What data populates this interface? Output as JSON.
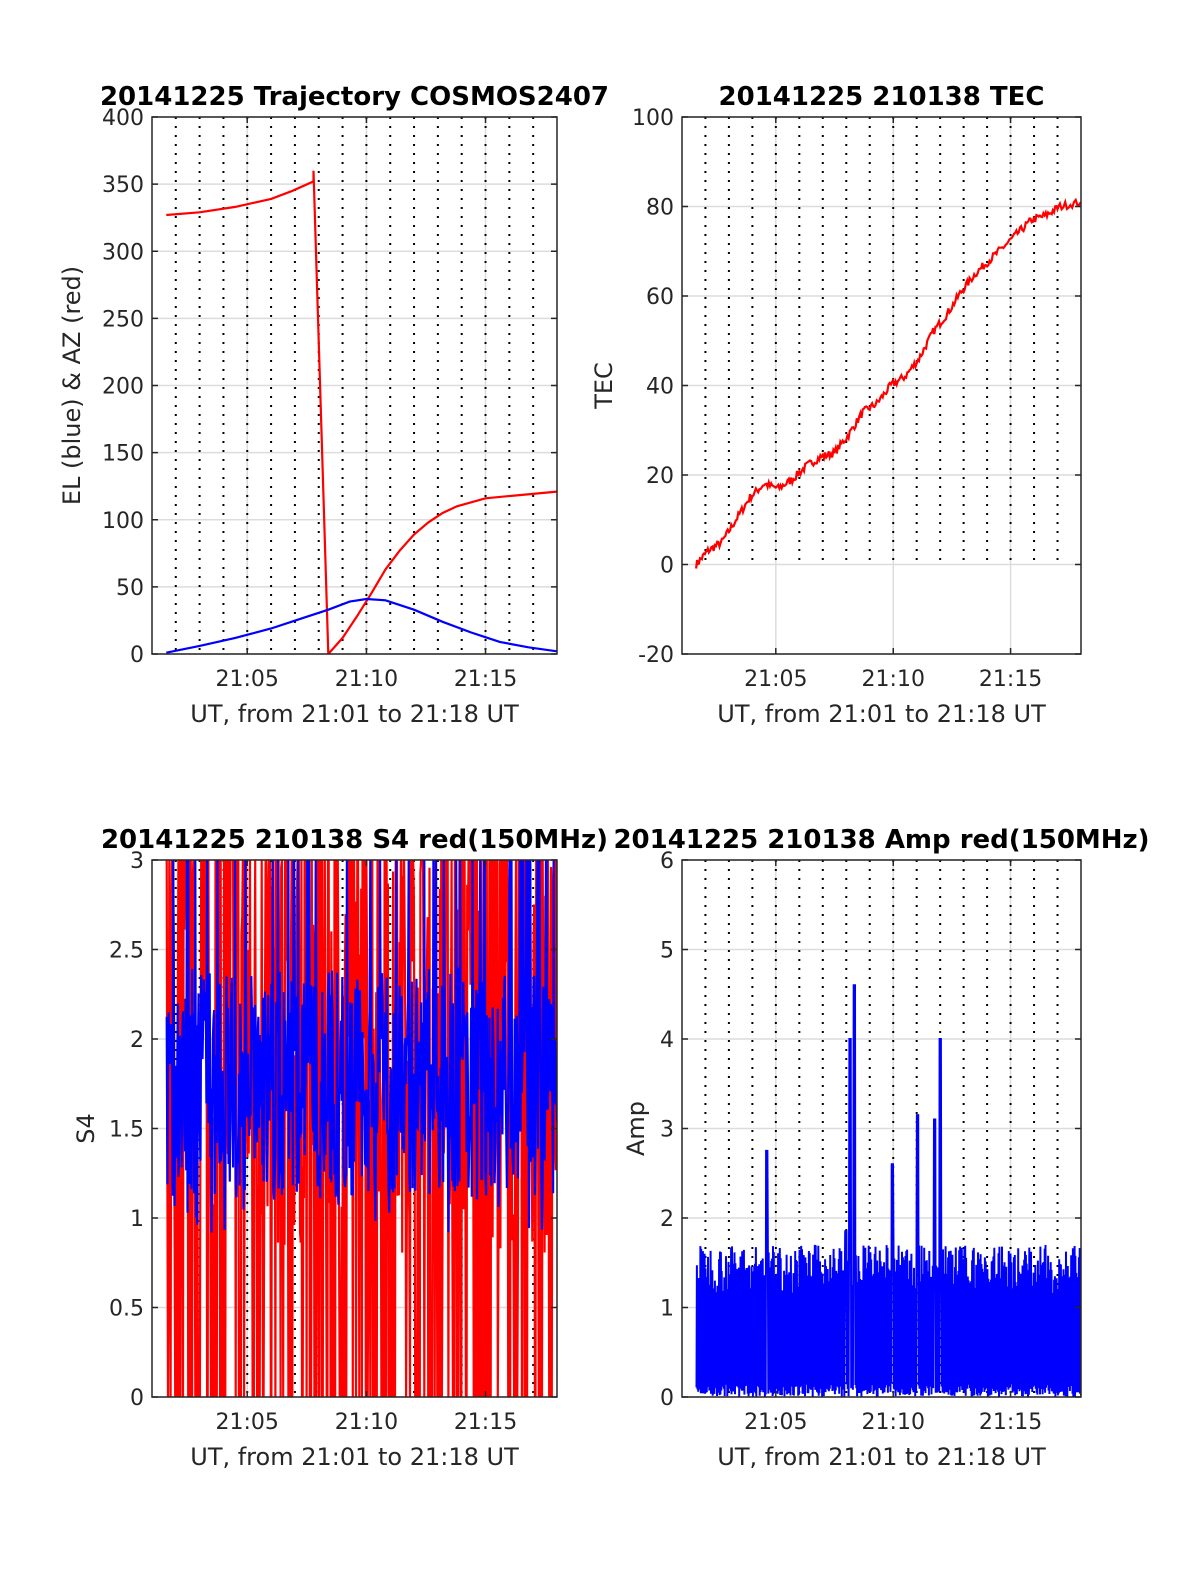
{
  "colors": {
    "red": "#ff0000",
    "blue": "#0000ff",
    "axis": "#262626",
    "grid": "#dcdcdc",
    "dots": "#000000"
  },
  "chart_data": [
    {
      "id": "trajectory",
      "type": "line",
      "title": "20141225 Trajectory COSMOS2407",
      "xlabel": "UT, from 21:01 to 21:18 UT",
      "ylabel": "EL (blue) & AZ (red)",
      "xlim": [
        21.0167,
        21.3
      ],
      "ylim": [
        0,
        400
      ],
      "xticks": [
        21.0833,
        21.1667,
        21.25
      ],
      "xtick_labels": [
        "21:05",
        "21:10",
        "21:15"
      ],
      "yticks": [
        0,
        50,
        100,
        150,
        200,
        250,
        300,
        350,
        400
      ],
      "ytick_labels": [
        "0",
        "50",
        "100",
        "150",
        "200",
        "250",
        "300",
        "350",
        "400"
      ],
      "grid": true,
      "series": [
        {
          "color": "red",
          "x": [
            21.0267,
            21.05,
            21.075,
            21.1,
            21.115,
            21.1297,
            21.1297,
            21.14,
            21.15,
            21.16,
            21.17,
            21.18,
            21.19,
            21.2,
            21.21,
            21.22,
            21.23,
            21.24,
            21.25,
            21.27,
            21.3
          ],
          "y": [
            327,
            329,
            333,
            339,
            345,
            352,
            360,
            0,
            12,
            28,
            45,
            63,
            77,
            89,
            98,
            105,
            110,
            113,
            116,
            118,
            121
          ]
        },
        {
          "color": "blue",
          "x": [
            21.0267,
            21.05,
            21.075,
            21.1,
            21.12,
            21.14,
            21.155,
            21.1667,
            21.18,
            21.2,
            21.22,
            21.24,
            21.26,
            21.28,
            21.3
          ],
          "y": [
            1,
            6,
            12,
            19,
            26,
            33,
            39,
            41,
            40,
            33,
            24,
            16,
            9,
            5,
            2
          ]
        }
      ]
    },
    {
      "id": "tec",
      "type": "line",
      "title": "20141225 210138 TEC",
      "xlabel": "UT, from 21:01 to 21:18 UT",
      "ylabel": "TEC",
      "xlim": [
        21.0167,
        21.3
      ],
      "ylim": [
        -20,
        100
      ],
      "xticks": [
        21.0833,
        21.1667,
        21.25
      ],
      "xtick_labels": [
        "21:05",
        "21:10",
        "21:15"
      ],
      "yticks": [
        -20,
        0,
        20,
        40,
        60,
        80,
        100
      ],
      "ytick_labels": [
        "-20",
        "0",
        "20",
        "40",
        "60",
        "80",
        "100"
      ],
      "grid": true,
      "series": [
        {
          "color": "red",
          "x": [
            21.0267,
            21.035,
            21.045,
            21.055,
            21.065,
            21.075,
            21.085,
            21.095,
            21.105,
            21.115,
            21.125,
            21.135,
            21.145,
            21.155,
            21.165,
            21.175,
            21.185,
            21.195,
            21.205,
            21.215,
            21.225,
            21.235,
            21.245,
            21.255,
            21.265,
            21.275,
            21.285,
            21.3
          ],
          "y": [
            0,
            3,
            5,
            10,
            15,
            18,
            17,
            19,
            22,
            24,
            25,
            29,
            34,
            36,
            40,
            42,
            46,
            52,
            56,
            61,
            65,
            68,
            71,
            74,
            77,
            78,
            80,
            81
          ]
        }
      ]
    },
    {
      "id": "s4",
      "type": "line",
      "title": "20141225 210138 S4 red(150MHz)",
      "xlabel": "UT, from 21:01 to 21:18 UT",
      "ylabel": "S4",
      "xlim": [
        21.0167,
        21.3
      ],
      "ylim": [
        0,
        3
      ],
      "xticks": [
        21.0833,
        21.1667,
        21.25
      ],
      "xtick_labels": [
        "21:05",
        "21:10",
        "21:15"
      ],
      "yticks": [
        0,
        0.5,
        1,
        1.5,
        2,
        2.5,
        3
      ],
      "ytick_labels": [
        "0",
        "0.5",
        "1",
        "1.5",
        "2",
        "2.5",
        "3"
      ],
      "grid": true,
      "series": [
        {
          "color": "red",
          "x_range": [
            21.027,
            21.3
          ],
          "band": [
            0,
            3
          ],
          "note": "dense noise spanning full range"
        },
        {
          "color": "blue",
          "x_range": [
            21.027,
            21.3
          ],
          "band": [
            0.9,
            3
          ],
          "mean": 1.75
        }
      ]
    },
    {
      "id": "amp",
      "type": "line",
      "title": "20141225 210138 Amp red(150MHz)",
      "xlabel": "UT, from 21:01 to 21:18 UT",
      "ylabel": "Amp",
      "xlim": [
        21.0167,
        21.3
      ],
      "ylim": [
        0,
        6
      ],
      "xticks": [
        21.0833,
        21.1667,
        21.25
      ],
      "xtick_labels": [
        "21:05",
        "21:10",
        "21:15"
      ],
      "yticks": [
        0,
        1,
        2,
        3,
        4,
        5,
        6
      ],
      "ytick_labels": [
        "0",
        "1",
        "2",
        "3",
        "4",
        "5",
        "6"
      ],
      "grid": true,
      "series": [
        {
          "color": "blue",
          "x_range": [
            21.027,
            21.3
          ],
          "band": [
            0,
            1.8
          ],
          "peaks": [
            [
              21.077,
              2.75
            ],
            [
              21.133,
              1.85
            ],
            [
              21.139,
              4.6
            ],
            [
              21.136,
              4.0
            ],
            [
              21.166,
              2.6
            ],
            [
              21.184,
              3.15
            ],
            [
              21.2,
              4.0
            ],
            [
              21.196,
              3.1
            ]
          ]
        }
      ]
    }
  ]
}
